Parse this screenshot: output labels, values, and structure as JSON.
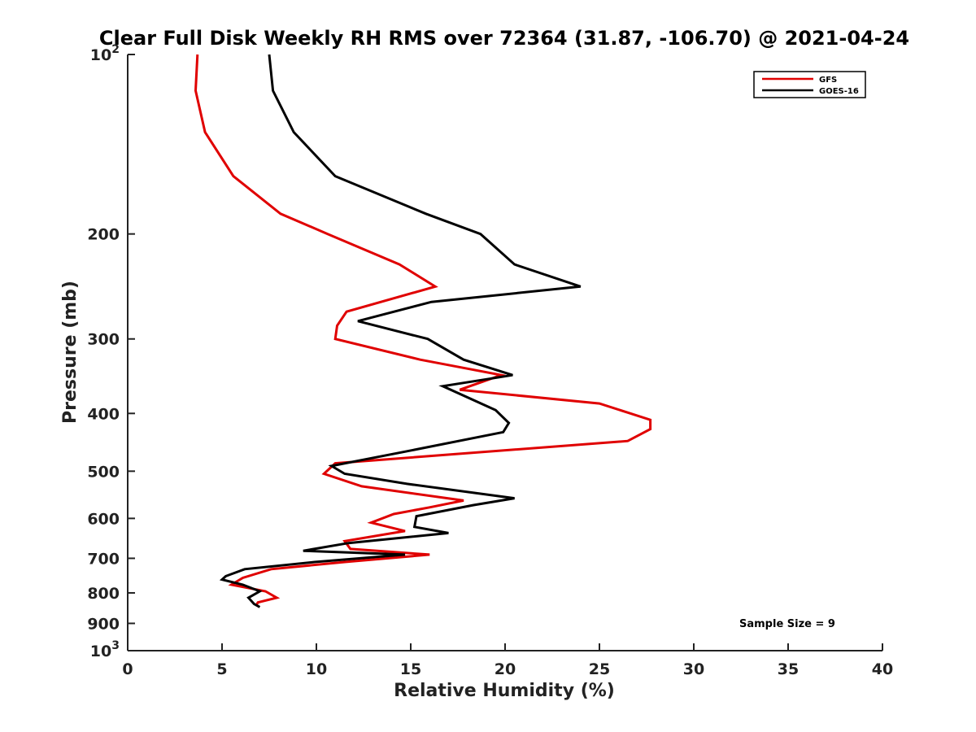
{
  "chart_data": {
    "type": "line",
    "title": "Clear Full Disk Weekly RH RMS over 72364 (31.87, -106.70) @ 2021-04-24",
    "xlabel": "Relative Humidity (%)",
    "ylabel": "Pressure (mb)",
    "xlim": [
      0,
      40
    ],
    "ylim": [
      100,
      1000
    ],
    "y_scale": "log",
    "y_reversed": true,
    "x_ticks": [
      {
        "value": 0,
        "label": "0"
      },
      {
        "value": 5,
        "label": "5"
      },
      {
        "value": 10,
        "label": "10"
      },
      {
        "value": 15,
        "label": "15"
      },
      {
        "value": 20,
        "label": "20"
      },
      {
        "value": 25,
        "label": "25"
      },
      {
        "value": 30,
        "label": "30"
      },
      {
        "value": 35,
        "label": "35"
      },
      {
        "value": 40,
        "label": "40"
      }
    ],
    "y_ticks": [
      {
        "value": 100,
        "base": "10",
        "exp": "2"
      },
      {
        "value": 200,
        "base": "200",
        "exp": ""
      },
      {
        "value": 300,
        "base": "300",
        "exp": ""
      },
      {
        "value": 400,
        "base": "400",
        "exp": ""
      },
      {
        "value": 500,
        "base": "500",
        "exp": ""
      },
      {
        "value": 600,
        "base": "600",
        "exp": ""
      },
      {
        "value": 700,
        "base": "700",
        "exp": ""
      },
      {
        "value": 800,
        "base": "800",
        "exp": ""
      },
      {
        "value": 900,
        "base": "900",
        "exp": ""
      },
      {
        "value": 1000,
        "base": "10",
        "exp": "3"
      }
    ],
    "grid": false,
    "legend_position": "top-right",
    "annotation": "Sample Size = 9",
    "series": [
      {
        "name": "GFS",
        "color": "#e00000",
        "points": [
          [
            3.7,
            100
          ],
          [
            3.6,
            115
          ],
          [
            4.1,
            135
          ],
          [
            5.6,
            160
          ],
          [
            8.1,
            185
          ],
          [
            10.6,
            200
          ],
          [
            14.4,
            225
          ],
          [
            16.3,
            245
          ],
          [
            11.6,
            270
          ],
          [
            11.1,
            285
          ],
          [
            11.0,
            300
          ],
          [
            15.5,
            325
          ],
          [
            19.8,
            345
          ],
          [
            17.6,
            365
          ],
          [
            25.0,
            385
          ],
          [
            27.7,
            410
          ],
          [
            27.7,
            425
          ],
          [
            26.5,
            445
          ],
          [
            11.0,
            485
          ],
          [
            10.4,
            505
          ],
          [
            12.4,
            530
          ],
          [
            17.8,
            560
          ],
          [
            16.0,
            575
          ],
          [
            14.1,
            590
          ],
          [
            12.9,
            610
          ],
          [
            14.7,
            630
          ],
          [
            11.5,
            655
          ],
          [
            11.8,
            675
          ],
          [
            16.0,
            690
          ],
          [
            11.5,
            710
          ],
          [
            7.6,
            730
          ],
          [
            6.1,
            755
          ],
          [
            5.5,
            775
          ],
          [
            7.3,
            795
          ],
          [
            7.9,
            815
          ],
          [
            6.9,
            830
          ],
          [
            6.8,
            840
          ]
        ]
      },
      {
        "name": "GOES-16",
        "color": "#000000",
        "points": [
          [
            7.5,
            100
          ],
          [
            7.7,
            115
          ],
          [
            8.8,
            135
          ],
          [
            11.0,
            160
          ],
          [
            15.8,
            185
          ],
          [
            18.7,
            200
          ],
          [
            20.5,
            225
          ],
          [
            24.0,
            245
          ],
          [
            16.1,
            260
          ],
          [
            12.2,
            280
          ],
          [
            15.9,
            300
          ],
          [
            17.8,
            325
          ],
          [
            20.4,
            345
          ],
          [
            16.7,
            360
          ],
          [
            19.5,
            395
          ],
          [
            20.2,
            415
          ],
          [
            19.9,
            430
          ],
          [
            14.5,
            465
          ],
          [
            10.8,
            490
          ],
          [
            11.5,
            505
          ],
          [
            14.8,
            525
          ],
          [
            20.5,
            555
          ],
          [
            18.3,
            570
          ],
          [
            15.3,
            595
          ],
          [
            15.2,
            620
          ],
          [
            17.0,
            635
          ],
          [
            11.7,
            660
          ],
          [
            9.3,
            680
          ],
          [
            14.7,
            690
          ],
          [
            9.9,
            710
          ],
          [
            6.2,
            730
          ],
          [
            5.2,
            750
          ],
          [
            5.0,
            760
          ],
          [
            6.1,
            775
          ],
          [
            7.0,
            795
          ],
          [
            6.4,
            815
          ],
          [
            6.7,
            835
          ],
          [
            7.0,
            845
          ]
        ]
      }
    ]
  }
}
